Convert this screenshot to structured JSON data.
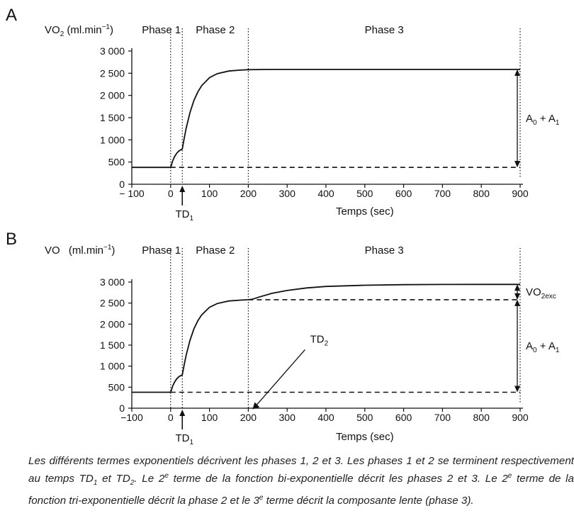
{
  "chart_data": [
    {
      "panel": "A",
      "type": "line",
      "ylabel": "VO2 (ml.min−1)",
      "ylabel_main": "VO",
      "ylabel_sub": "2",
      "ylabel_unit_open": "(ml.min",
      "ylabel_unit_sup": "−1",
      "ylabel_unit_close": ")",
      "xlabel": "Temps (sec)",
      "xlim": [
        -100,
        900
      ],
      "ylim": [
        0,
        3000
      ],
      "xticks": [
        -100,
        0,
        100,
        200,
        300,
        400,
        500,
        600,
        700,
        800,
        900
      ],
      "xtick_labels": [
        "− 100",
        "0",
        "100",
        "200",
        "300",
        "400",
        "500",
        "600",
        "700",
        "800",
        "900"
      ],
      "yticks": [
        0,
        500,
        1000,
        1500,
        2000,
        2500,
        3000
      ],
      "ytick_labels": [
        "0",
        "500",
        "1 000",
        "1 500",
        "2 000",
        "2 500",
        "3 000"
      ],
      "phases": [
        {
          "label": "Phase 1",
          "x_start": 0,
          "x_end": 30
        },
        {
          "label": "Phase 2",
          "x_start": 30,
          "x_end": 200
        },
        {
          "label": "Phase 3",
          "x_start": 200,
          "x_end": 900
        }
      ],
      "phase_boundaries": [
        0,
        30,
        200,
        900
      ],
      "baseline": 380,
      "series": [
        {
          "style": "solid",
          "x": [
            -100,
            0,
            2,
            5,
            10,
            15,
            20,
            25,
            30,
            35,
            40,
            50,
            60,
            70,
            80,
            100,
            120,
            150,
            180,
            200,
            250,
            300,
            400,
            500,
            600,
            700,
            800,
            900
          ],
          "y": [
            380,
            380,
            430,
            520,
            620,
            690,
            740,
            770,
            790,
            1040,
            1260,
            1620,
            1890,
            2080,
            2220,
            2400,
            2490,
            2550,
            2570,
            2580,
            2585,
            2585,
            2585,
            2585,
            2585,
            2585,
            2585,
            2585
          ]
        },
        {
          "style": "dashed",
          "x": [
            0,
            900
          ],
          "y": [
            380,
            380
          ]
        }
      ],
      "annotations": [
        {
          "text": "TD",
          "sub": "1",
          "x": 30
        },
        {
          "text": "A",
          "sub": "0",
          "text2": " + A",
          "sub2": "1",
          "y_range": [
            380,
            2585
          ]
        }
      ]
    },
    {
      "panel": "B",
      "type": "line",
      "ylabel_main": "VO",
      "ylabel_unit_open": "(ml.min",
      "ylabel_unit_sup": "−1",
      "ylabel_unit_close": ")",
      "xlabel": "Temps (sec)",
      "xlim": [
        -100,
        900
      ],
      "ylim": [
        0,
        3000
      ],
      "xticks": [
        -100,
        0,
        100,
        200,
        300,
        400,
        500,
        600,
        700,
        800,
        900
      ],
      "xtick_labels": [
        "−100",
        "0",
        "100",
        "200",
        "300",
        "400",
        "500",
        "600",
        "700",
        "800",
        "900"
      ],
      "yticks": [
        0,
        500,
        1000,
        1500,
        2000,
        2500,
        3000
      ],
      "ytick_labels": [
        "0",
        "500",
        "1 000",
        "1 500",
        "2 000",
        "2 500",
        "3 000"
      ],
      "phases": [
        {
          "label": "Phase 1",
          "x_start": 0,
          "x_end": 30
        },
        {
          "label": "Phase 2",
          "x_start": 30,
          "x_end": 200
        },
        {
          "label": "Phase 3",
          "x_start": 200,
          "x_end": 900
        }
      ],
      "phase_boundaries": [
        0,
        30,
        200,
        900
      ],
      "baseline": 380,
      "series": [
        {
          "style": "solid",
          "x": [
            -100,
            0,
            2,
            5,
            10,
            15,
            20,
            25,
            30,
            35,
            40,
            50,
            60,
            70,
            80,
            100,
            120,
            150,
            180,
            200,
            210,
            230,
            260,
            300,
            350,
            400,
            500,
            600,
            700,
            800,
            900
          ],
          "y": [
            380,
            380,
            430,
            520,
            620,
            690,
            740,
            770,
            790,
            1040,
            1260,
            1620,
            1890,
            2080,
            2220,
            2400,
            2490,
            2550,
            2570,
            2580,
            2590,
            2650,
            2730,
            2800,
            2860,
            2895,
            2925,
            2938,
            2942,
            2945,
            2945
          ]
        },
        {
          "style": "dashed",
          "x": [
            0,
            900
          ],
          "y": [
            380,
            380
          ]
        },
        {
          "style": "dashed",
          "x": [
            200,
            900
          ],
          "y": [
            2580,
            2580
          ]
        }
      ],
      "annotations": [
        {
          "text": "TD",
          "sub": "1",
          "x": 30
        },
        {
          "text": "TD",
          "sub": "2",
          "x": 200
        },
        {
          "text": "VO",
          "sub": "2exc",
          "y_range": [
            2580,
            2945
          ]
        },
        {
          "text": "A",
          "sub": "0",
          "text2": " + A",
          "sub2": "1",
          "y_range": [
            380,
            2580
          ]
        }
      ]
    }
  ],
  "panels": {
    "a_label": "A",
    "b_label": "B"
  },
  "caption": "Les différents termes exponentiels décrivent les phases 1, 2 et 3. Les phases 1 et 2 se terminent respectivement au temps TD1 et TD2. Le 2e terme de la fonction bi-exponentielle décrit les phases 2 et 3. Le 2e terme de la fonction tri-exponentielle décrit la phase 2 et le 3e terme décrit la composante lente (phase 3).",
  "caption_parts": {
    "p1": "Les différents termes exponentiels décrivent les phases 1, 2 et 3. Les phases 1 et 2 se terminent respectivement au temps TD",
    "s1": "1",
    "p2": " et TD",
    "s2": "2",
    "p3": ". Le 2",
    "e1": "e",
    "p4": " terme de la fonction bi-exponentielle décrit les phases 2 et 3. Le 2",
    "e2": "e",
    "p5": " terme de la fonction tri-exponentielle décrit la phase 2 et le 3",
    "e3": "e",
    "p6": " terme décrit la composante lente (phase 3)."
  }
}
